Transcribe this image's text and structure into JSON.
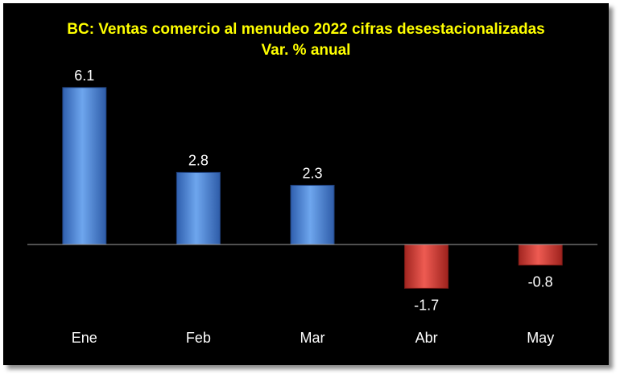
{
  "chart_data": {
    "type": "bar",
    "title": "BC: Ventas comercio al menudeo 2022 cifras desestacionalizadas",
    "subtitle": "Var. % anual",
    "categories": [
      "Ene",
      "Feb",
      "Mar",
      "Abr",
      "May"
    ],
    "values": [
      6.1,
      2.8,
      2.3,
      -1.7,
      -0.8
    ],
    "value_labels": [
      "6.1",
      "2.8",
      "2.3",
      "-1.7",
      "-0.8"
    ],
    "ylim": [
      -2.5,
      6.5
    ],
    "grid": false,
    "legend": "none",
    "colors": {
      "background": "#000000",
      "title": "#ffff00",
      "text": "#ffffff",
      "positive": "#4f86d4",
      "negative": "#d23a33",
      "axis": "#a0a0a0"
    }
  }
}
